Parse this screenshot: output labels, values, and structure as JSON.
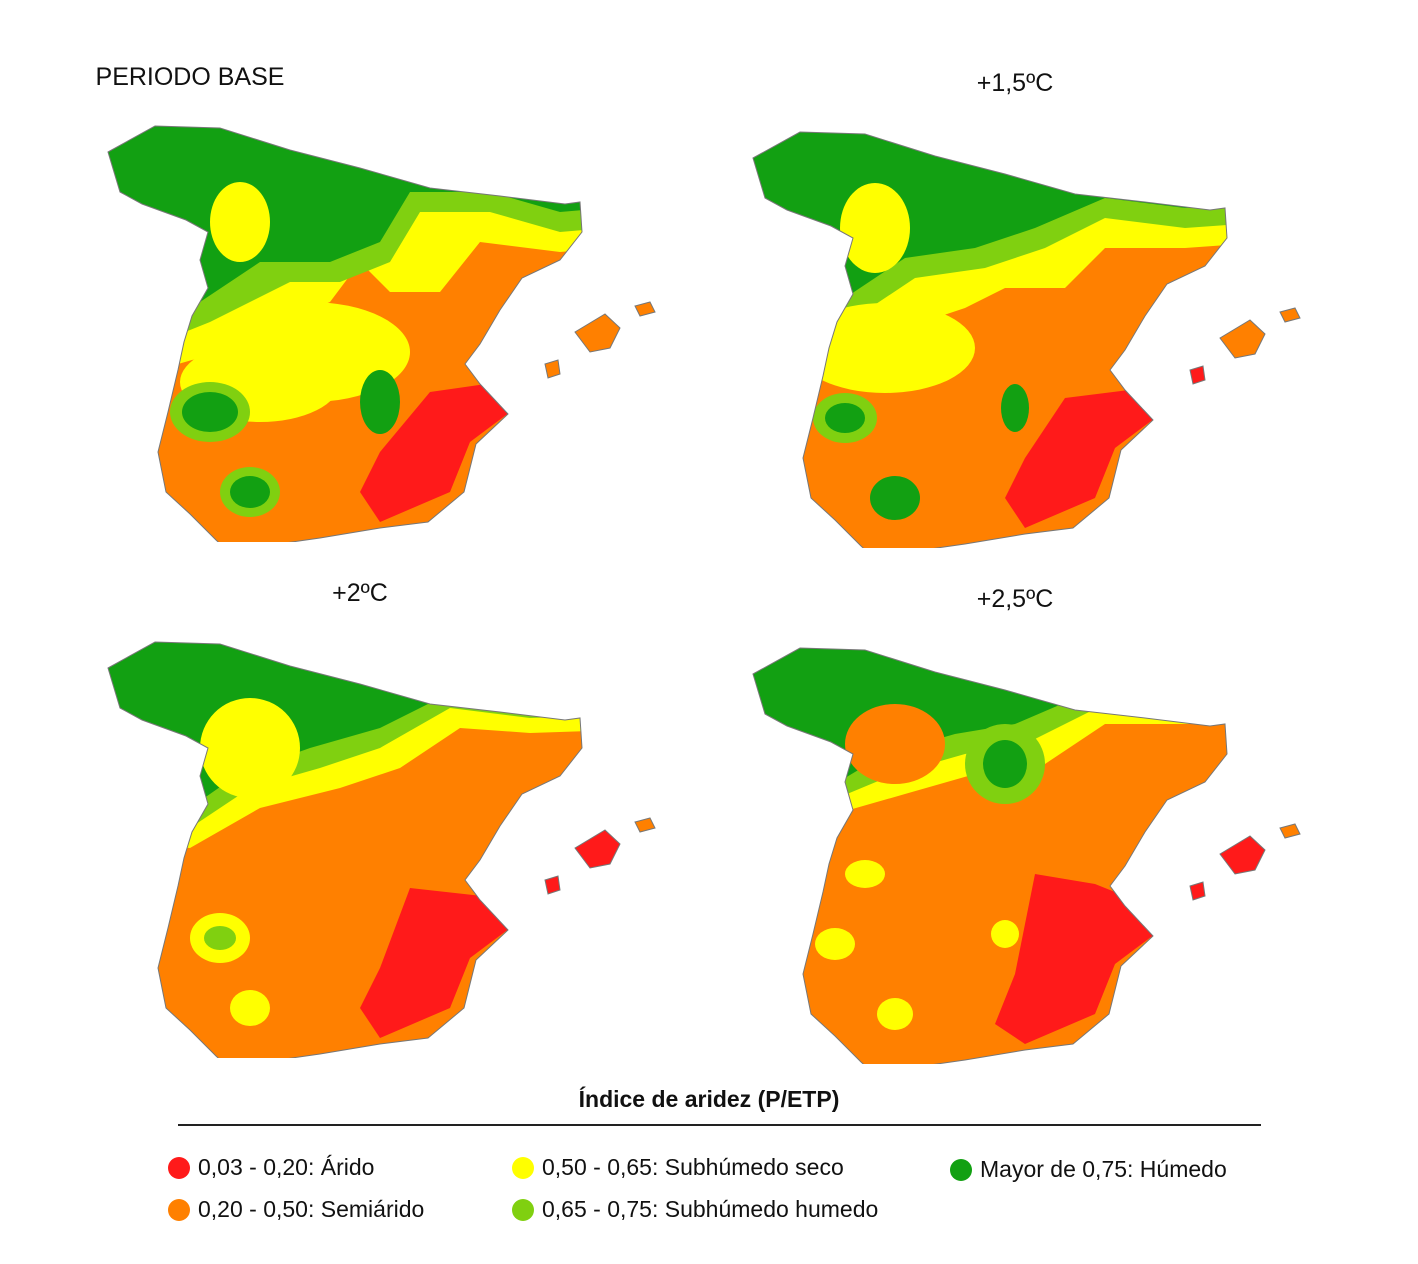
{
  "panels": [
    {
      "id": "base",
      "title": "PERIODO BASE"
    },
    {
      "id": "p15",
      "title": "+1,5ºC"
    },
    {
      "id": "p20",
      "title": "+2ºC"
    },
    {
      "id": "p25",
      "title": "+2,5ºC"
    }
  ],
  "legend": {
    "title": "Índice de aridez (P/ETP)",
    "items": [
      {
        "label": "0,03 - 0,20: Árido",
        "color": "#ff1a1a"
      },
      {
        "label": "0,20 - 0,50: Semiárido",
        "color": "#ff8000"
      },
      {
        "label": "0,50 - 0,65: Subhúmedo seco",
        "color": "#ffff00"
      },
      {
        "label": "0,65 - 0,75: Subhúmedo humedo",
        "color": "#80d010"
      },
      {
        "label": "Mayor de 0,75: Húmedo",
        "color": "#12a012"
      }
    ]
  }
}
